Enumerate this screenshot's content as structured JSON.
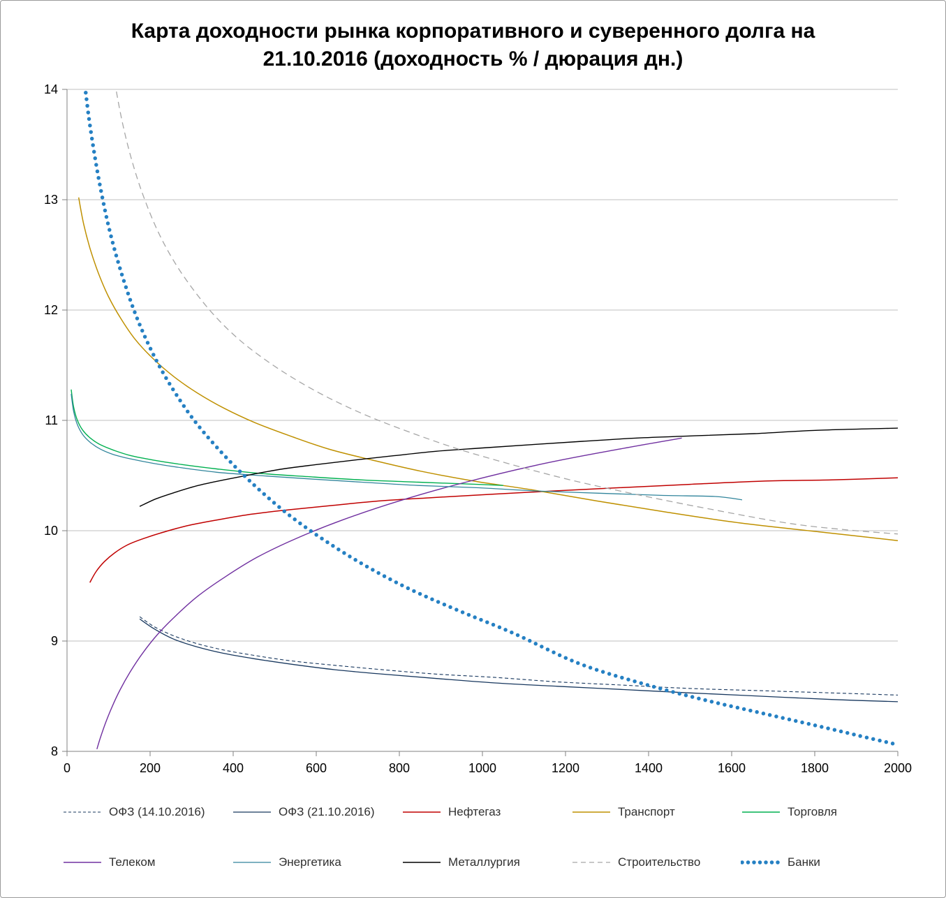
{
  "title": {
    "line1": "Карта доходности рынка корпоративного и суверенного долга на",
    "line2": "21.10.2016 (доходность % / дюрация дн.)"
  },
  "chart_data": {
    "type": "line",
    "title": "Карта доходности рынка корпоративного и суверенного долга на 21.10.2016 (доходность % / дюрация дн.)",
    "xlabel": "дюрация дн.",
    "ylabel": "доходность %",
    "xlim": [
      0,
      2000
    ],
    "ylim": [
      8,
      14
    ],
    "xticks": [
      0,
      200,
      400,
      600,
      800,
      1000,
      1200,
      1400,
      1600,
      1800,
      2000
    ],
    "yticks": [
      8,
      9,
      10,
      11,
      12,
      13,
      14
    ],
    "grid": "horizontal",
    "legend_position": "bottom",
    "colors": {
      "gridline": "#bfbfbf",
      "axis": "#808080",
      "tick_label": "#000000"
    },
    "series": [
      {
        "id": "ofz-previous",
        "name": "ОФЗ (14.10.2016)",
        "color": "#17375E",
        "line_style": "dashed",
        "line_width": 1.1,
        "points": [
          [
            175,
            9.22
          ],
          [
            210,
            9.13
          ],
          [
            255,
            9.05
          ],
          [
            310,
            8.98
          ],
          [
            375,
            8.92
          ],
          [
            450,
            8.87
          ],
          [
            540,
            8.82
          ],
          [
            645,
            8.78
          ],
          [
            760,
            8.74
          ],
          [
            890,
            8.7
          ],
          [
            1030,
            8.67
          ],
          [
            1180,
            8.63
          ],
          [
            1340,
            8.6
          ],
          [
            1500,
            8.57
          ],
          [
            1670,
            8.55
          ],
          [
            1840,
            8.53
          ],
          [
            2000,
            8.51
          ]
        ]
      },
      {
        "id": "ofz-current",
        "name": "ОФЗ (21.10.2016)",
        "color": "#17375E",
        "line_style": "solid",
        "line_width": 1.3,
        "points": [
          [
            175,
            9.2
          ],
          [
            210,
            9.11
          ],
          [
            255,
            9.02
          ],
          [
            310,
            8.95
          ],
          [
            375,
            8.89
          ],
          [
            450,
            8.84
          ],
          [
            540,
            8.79
          ],
          [
            645,
            8.74
          ],
          [
            760,
            8.7
          ],
          [
            890,
            8.66
          ],
          [
            1030,
            8.62
          ],
          [
            1180,
            8.59
          ],
          [
            1340,
            8.56
          ],
          [
            1500,
            8.53
          ],
          [
            1670,
            8.5
          ],
          [
            1840,
            8.47
          ],
          [
            2000,
            8.45
          ]
        ]
      },
      {
        "id": "neftegaz",
        "name": "Нефтегаз",
        "color": "#C00000",
        "line_style": "solid",
        "line_width": 1.5,
        "points": [
          [
            55,
            9.53
          ],
          [
            70,
            9.63
          ],
          [
            90,
            9.72
          ],
          [
            115,
            9.8
          ],
          [
            145,
            9.87
          ],
          [
            185,
            9.93
          ],
          [
            235,
            9.99
          ],
          [
            295,
            10.05
          ],
          [
            365,
            10.1
          ],
          [
            445,
            10.15
          ],
          [
            535,
            10.19
          ],
          [
            640,
            10.23
          ],
          [
            755,
            10.27
          ],
          [
            880,
            10.3
          ],
          [
            1020,
            10.33
          ],
          [
            1170,
            10.36
          ],
          [
            1330,
            10.39
          ],
          [
            1500,
            10.42
          ],
          [
            1680,
            10.45
          ],
          [
            1840,
            10.46
          ],
          [
            2000,
            10.48
          ]
        ]
      },
      {
        "id": "transport",
        "name": "Транспорт",
        "color": "#BF9000",
        "line_style": "solid",
        "line_width": 1.5,
        "points": [
          [
            28,
            13.02
          ],
          [
            40,
            12.78
          ],
          [
            56,
            12.55
          ],
          [
            76,
            12.33
          ],
          [
            100,
            12.12
          ],
          [
            130,
            11.92
          ],
          [
            165,
            11.73
          ],
          [
            207,
            11.56
          ],
          [
            256,
            11.4
          ],
          [
            313,
            11.25
          ],
          [
            378,
            11.11
          ],
          [
            452,
            10.98
          ],
          [
            536,
            10.86
          ],
          [
            630,
            10.74
          ],
          [
            735,
            10.64
          ],
          [
            851,
            10.54
          ],
          [
            979,
            10.45
          ],
          [
            1120,
            10.37
          ],
          [
            1274,
            10.27
          ],
          [
            1440,
            10.17
          ],
          [
            1620,
            10.07
          ],
          [
            1810,
            9.99
          ],
          [
            2000,
            9.91
          ]
        ]
      },
      {
        "id": "torgovlya",
        "name": "Торговля",
        "color": "#00B050",
        "line_style": "solid",
        "line_width": 1.4,
        "points": [
          [
            10,
            11.28
          ],
          [
            16,
            11.12
          ],
          [
            25,
            11.0
          ],
          [
            38,
            10.91
          ],
          [
            56,
            10.84
          ],
          [
            80,
            10.78
          ],
          [
            112,
            10.73
          ],
          [
            154,
            10.68
          ],
          [
            208,
            10.64
          ],
          [
            276,
            10.6
          ],
          [
            360,
            10.56
          ],
          [
            462,
            10.52
          ],
          [
            580,
            10.49
          ],
          [
            710,
            10.46
          ],
          [
            845,
            10.44
          ],
          [
            985,
            10.42
          ],
          [
            1050,
            10.41
          ]
        ]
      },
      {
        "id": "telekom",
        "name": "Телеком",
        "color": "#7030A0",
        "line_style": "solid",
        "line_width": 1.4,
        "points": [
          [
            72,
            8.02
          ],
          [
            80,
            8.12
          ],
          [
            92,
            8.25
          ],
          [
            108,
            8.4
          ],
          [
            128,
            8.56
          ],
          [
            152,
            8.72
          ],
          [
            182,
            8.89
          ],
          [
            218,
            9.06
          ],
          [
            262,
            9.23
          ],
          [
            316,
            9.41
          ],
          [
            380,
            9.58
          ],
          [
            458,
            9.76
          ],
          [
            552,
            9.93
          ],
          [
            665,
            10.1
          ],
          [
            800,
            10.27
          ],
          [
            960,
            10.44
          ],
          [
            1150,
            10.61
          ],
          [
            1330,
            10.74
          ],
          [
            1480,
            10.84
          ]
        ]
      },
      {
        "id": "energetika",
        "name": "Энергетика",
        "color": "#31859C",
        "line_style": "solid",
        "line_width": 1.3,
        "points": [
          [
            10,
            11.24
          ],
          [
            16,
            11.08
          ],
          [
            25,
            10.96
          ],
          [
            38,
            10.87
          ],
          [
            56,
            10.8
          ],
          [
            80,
            10.74
          ],
          [
            112,
            10.69
          ],
          [
            154,
            10.65
          ],
          [
            208,
            10.61
          ],
          [
            276,
            10.57
          ],
          [
            360,
            10.53
          ],
          [
            462,
            10.5
          ],
          [
            580,
            10.47
          ],
          [
            710,
            10.44
          ],
          [
            845,
            10.41
          ],
          [
            985,
            10.39
          ],
          [
            1130,
            10.36
          ],
          [
            1280,
            10.34
          ],
          [
            1430,
            10.32
          ],
          [
            1560,
            10.31
          ],
          [
            1625,
            10.28
          ]
        ]
      },
      {
        "id": "metallurgiya",
        "name": "Металлургия",
        "color": "#000000",
        "line_style": "solid",
        "line_width": 1.4,
        "points": [
          [
            175,
            10.22
          ],
          [
            215,
            10.29
          ],
          [
            262,
            10.35
          ],
          [
            316,
            10.41
          ],
          [
            377,
            10.46
          ],
          [
            445,
            10.51
          ],
          [
            520,
            10.56
          ],
          [
            602,
            10.6
          ],
          [
            691,
            10.64
          ],
          [
            787,
            10.68
          ],
          [
            890,
            10.72
          ],
          [
            1000,
            10.75
          ],
          [
            1117,
            10.78
          ],
          [
            1241,
            10.81
          ],
          [
            1372,
            10.84
          ],
          [
            1510,
            10.86
          ],
          [
            1655,
            10.88
          ],
          [
            1807,
            10.91
          ],
          [
            2000,
            10.93
          ]
        ]
      },
      {
        "id": "stroitelstvo",
        "name": "Строительство",
        "color": "#A6A6A6",
        "line_style": "dashed-long",
        "line_width": 1.3,
        "points": [
          [
            100,
            14.45
          ],
          [
            118,
            14.0
          ],
          [
            138,
            13.62
          ],
          [
            162,
            13.28
          ],
          [
            190,
            12.97
          ],
          [
            223,
            12.68
          ],
          [
            261,
            12.42
          ],
          [
            305,
            12.18
          ],
          [
            355,
            11.95
          ],
          [
            412,
            11.74
          ],
          [
            477,
            11.55
          ],
          [
            550,
            11.37
          ],
          [
            632,
            11.2
          ],
          [
            724,
            11.04
          ],
          [
            827,
            10.89
          ],
          [
            942,
            10.74
          ],
          [
            1070,
            10.6
          ],
          [
            1212,
            10.46
          ],
          [
            1369,
            10.33
          ],
          [
            1542,
            10.2
          ],
          [
            1732,
            10.07
          ],
          [
            1870,
            10.01
          ],
          [
            2000,
            9.97
          ]
        ]
      },
      {
        "id": "banki",
        "name": "Банки",
        "color": "#2580C3",
        "line_style": "dotted",
        "line_width": 5.5,
        "points": [
          [
            45,
            13.97
          ],
          [
            52,
            13.76
          ],
          [
            61,
            13.53
          ],
          [
            72,
            13.28
          ],
          [
            85,
            13.02
          ],
          [
            100,
            12.76
          ],
          [
            118,
            12.5
          ],
          [
            139,
            12.24
          ],
          [
            163,
            11.98
          ],
          [
            191,
            11.73
          ],
          [
            224,
            11.48
          ],
          [
            262,
            11.24
          ],
          [
            306,
            11.0
          ],
          [
            355,
            10.78
          ],
          [
            410,
            10.56
          ],
          [
            472,
            10.34
          ],
          [
            542,
            10.12
          ],
          [
            625,
            9.9
          ],
          [
            715,
            9.69
          ],
          [
            820,
            9.48
          ],
          [
            940,
            9.28
          ],
          [
            1075,
            9.07
          ],
          [
            1230,
            8.8
          ],
          [
            1380,
            8.62
          ],
          [
            1530,
            8.47
          ],
          [
            1680,
            8.34
          ],
          [
            1830,
            8.21
          ],
          [
            1920,
            8.13
          ],
          [
            2000,
            8.06
          ]
        ]
      }
    ]
  }
}
